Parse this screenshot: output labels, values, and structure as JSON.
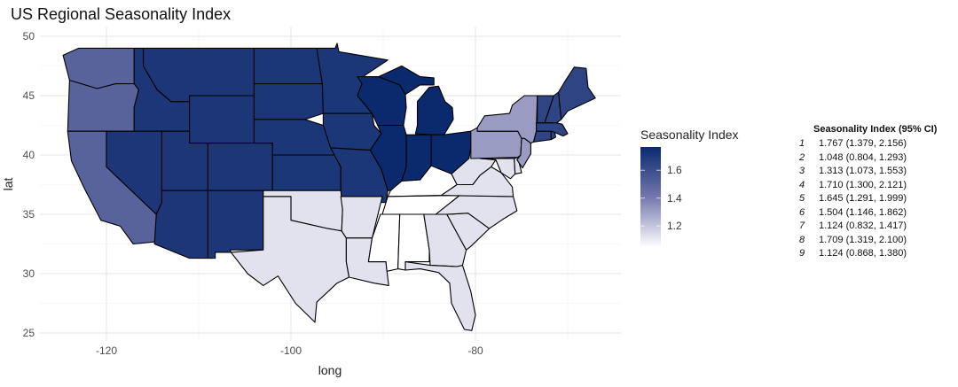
{
  "title": "US Regional Seasonality Index",
  "chart_data": {
    "type": "choropleth",
    "title": "US Regional Seasonality Index",
    "xlabel": "long",
    "ylabel": "lat",
    "x_ticks": [
      -120,
      -100,
      -80
    ],
    "y_ticks": [
      25,
      30,
      35,
      40,
      45,
      50
    ],
    "xlim": [
      -126,
      -66
    ],
    "ylim": [
      24,
      50.5
    ],
    "grid": true,
    "legend": {
      "title": "Seasonality Index",
      "ticks": [
        1.2,
        1.4,
        1.6
      ],
      "range": [
        1.048,
        1.767
      ],
      "low_color": "#ffffff",
      "mid_color": "#7478ad",
      "high_color": "#0b2a6e",
      "placement": "right"
    },
    "region_values": {
      "pacific": 1.504,
      "mountain": 1.71,
      "west_north_central": 1.709,
      "west_south_central": 1.124,
      "east_north_central": 1.767,
      "east_south_central": 1.048,
      "south_atlantic": 1.124,
      "middle_atlantic": 1.313,
      "new_england": 1.645
    },
    "table": {
      "title": "Seasonality Index (95% CI)",
      "rows": [
        {
          "id": "1",
          "value": "1.767 (1.379, 2.156)"
        },
        {
          "id": "2",
          "value": "1.048 (0.804, 1.293)"
        },
        {
          "id": "3",
          "value": "1.313 (1.073, 1.553)"
        },
        {
          "id": "4",
          "value": "1.710 (1.300, 2.121)"
        },
        {
          "id": "5",
          "value": "1.645 (1.291, 1.999)"
        },
        {
          "id": "6",
          "value": "1.504 (1.146, 1.862)"
        },
        {
          "id": "7",
          "value": "1.124 (0.832, 1.417)"
        },
        {
          "id": "8",
          "value": "1.709 (1.319, 2.100)"
        },
        {
          "id": "9",
          "value": "1.124 (0.868, 1.380)"
        }
      ]
    }
  }
}
